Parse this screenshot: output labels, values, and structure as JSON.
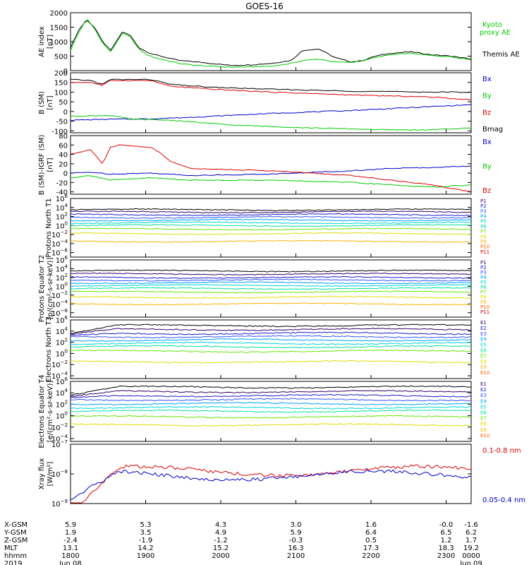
{
  "title": "GOES-16",
  "colors": {
    "black": "#000000",
    "blue": "#0000cc",
    "green": "#00cc00",
    "red": "#dd0000",
    "series": [
      "#000000",
      "#330066",
      "#1a1acc",
      "#3355ff",
      "#00a0ff",
      "#00d4d4",
      "#00e0a0",
      "#66e600",
      "#dede00",
      "#ffb000",
      "#ff6000",
      "#dd0000",
      "#880000"
    ]
  },
  "chart_data": [
    {
      "type": "line",
      "ylabel": "AE index [nT]",
      "yticks": [
        "0",
        "500",
        "1000",
        "1500",
        "2000"
      ],
      "ylim": [
        0,
        2000
      ],
      "legend": [
        {
          "label": "Kyoto proxy AE",
          "color": "green"
        },
        {
          "label": "Themis AE",
          "color": "black"
        }
      ],
      "series": [
        {
          "name": "Themis AE",
          "color": "black",
          "x": [
            0,
            0.02,
            0.04,
            0.06,
            0.08,
            0.1,
            0.13,
            0.15,
            0.17,
            0.19,
            0.21,
            0.24,
            0.27,
            0.3,
            0.35,
            0.4,
            0.45,
            0.5,
            0.55,
            0.58,
            0.62,
            0.66,
            0.7,
            0.73,
            0.76,
            0.8,
            0.85,
            0.9,
            0.95,
            1.0
          ],
          "y": [
            800,
            1400,
            1750,
            1500,
            1000,
            700,
            1350,
            1200,
            800,
            650,
            550,
            450,
            350,
            320,
            250,
            180,
            200,
            250,
            350,
            700,
            750,
            450,
            300,
            350,
            500,
            600,
            650,
            550,
            500,
            400
          ]
        },
        {
          "name": "Kyoto proxy AE",
          "color": "green",
          "x": [
            0,
            0.02,
            0.04,
            0.06,
            0.08,
            0.1,
            0.13,
            0.15,
            0.17,
            0.19,
            0.21,
            0.24,
            0.27,
            0.3,
            0.35,
            0.4,
            0.45,
            0.5,
            0.55,
            0.58,
            0.62,
            0.66,
            0.7,
            0.73,
            0.76,
            0.8,
            0.85,
            0.9,
            0.95,
            1.0
          ],
          "y": [
            700,
            1300,
            1800,
            1450,
            950,
            650,
            1300,
            1150,
            750,
            550,
            450,
            350,
            250,
            200,
            150,
            120,
            130,
            150,
            250,
            350,
            400,
            300,
            280,
            350,
            450,
            550,
            600,
            520,
            480,
            380
          ]
        }
      ]
    },
    {
      "type": "line",
      "ylabel": "B (SM) [nT]",
      "yticks": [
        "-100",
        "-50",
        "0",
        "50",
        "100",
        "150",
        "200"
      ],
      "ylim": [
        -110,
        200
      ],
      "legend": [
        {
          "label": "Bx",
          "color": "blue"
        },
        {
          "label": "By",
          "color": "green"
        },
        {
          "label": "Bz",
          "color": "red"
        },
        {
          "label": "Bmag",
          "color": "black"
        }
      ],
      "series": [
        {
          "name": "Bx",
          "color": "blue",
          "x": [
            0,
            0.1,
            0.2,
            0.3,
            0.5,
            0.7,
            0.9,
            1.0
          ],
          "y": [
            -45,
            -40,
            -38,
            -30,
            -10,
            5,
            25,
            35
          ]
        },
        {
          "name": "By",
          "color": "green",
          "x": [
            0,
            0.1,
            0.15,
            0.25,
            0.4,
            0.6,
            0.8,
            0.9,
            1.0
          ],
          "y": [
            -25,
            -20,
            -40,
            -45,
            -70,
            -85,
            -95,
            -95,
            -85
          ]
        },
        {
          "name": "Bz",
          "color": "red",
          "x": [
            0,
            0.05,
            0.08,
            0.1,
            0.2,
            0.25,
            0.35,
            0.5,
            0.7,
            0.9,
            1.0
          ],
          "y": [
            150,
            150,
            135,
            160,
            160,
            130,
            115,
            100,
            85,
            75,
            60
          ]
        },
        {
          "name": "Bmag",
          "color": "black",
          "x": [
            0,
            0.05,
            0.08,
            0.1,
            0.2,
            0.25,
            0.35,
            0.5,
            0.7,
            0.9,
            1.0
          ],
          "y": [
            165,
            160,
            140,
            165,
            165,
            140,
            125,
            115,
            105,
            100,
            100
          ]
        }
      ]
    },
    {
      "type": "line",
      "ylabel": "B (SM)-IGRF (SM) [nT]",
      "yticks": [
        "-40",
        "-20",
        "0",
        "20",
        "40",
        "60",
        "80"
      ],
      "ylim": [
        -45,
        80
      ],
      "legend": [
        {
          "label": "Bx",
          "color": "blue"
        },
        {
          "label": "By",
          "color": "green"
        },
        {
          "label": "Bz",
          "color": "red"
        }
      ],
      "series": [
        {
          "name": "Bx",
          "color": "blue",
          "x": [
            0,
            0.05,
            0.1,
            0.2,
            0.3,
            0.5,
            0.7,
            0.8,
            0.9,
            1.0
          ],
          "y": [
            0,
            2,
            -2,
            0,
            -5,
            -2,
            5,
            10,
            12,
            15
          ]
        },
        {
          "name": "By",
          "color": "green",
          "x": [
            0,
            0.05,
            0.1,
            0.2,
            0.3,
            0.5,
            0.7,
            0.9,
            1.0
          ],
          "y": [
            -10,
            -5,
            -15,
            -10,
            -15,
            -15,
            -20,
            -30,
            -25
          ]
        },
        {
          "name": "Bz",
          "color": "red",
          "x": [
            0,
            0.05,
            0.08,
            0.1,
            0.12,
            0.2,
            0.22,
            0.25,
            0.3,
            0.5,
            0.7,
            0.9,
            1.0
          ],
          "y": [
            40,
            50,
            20,
            55,
            60,
            55,
            45,
            25,
            10,
            5,
            -5,
            -25,
            -40
          ]
        }
      ]
    },
    {
      "type": "line",
      "yscale": "log",
      "ylabel": "Protons North T1",
      "ytick_exponents": [
        -6,
        -4,
        -2,
        0,
        2,
        4,
        6
      ],
      "ylim_exp": [
        -7,
        6
      ],
      "legend": [
        "P1",
        "P2",
        "P3",
        "P4",
        "P5",
        "P6",
        "P7",
        "P8",
        "P9",
        "P10",
        "P11"
      ],
      "levels_exp": [
        3.5,
        3.0,
        2.4,
        1.8,
        1.2,
        0.6,
        0.0,
        -0.8,
        -1.8,
        -3.5
      ]
    },
    {
      "type": "line",
      "yscale": "log",
      "ylabel": "Protons Equator T2 [p/(cm²-s-sr-keV)]",
      "ytick_exponents": [
        -6,
        -4,
        -2,
        0,
        2,
        4,
        6
      ],
      "ylim_exp": [
        -7,
        6
      ],
      "legend": [
        "P1",
        "P2",
        "P3",
        "P4",
        "P5",
        "P6",
        "P7",
        "P8",
        "P9",
        "P10",
        "P11"
      ],
      "levels_exp": [
        3.5,
        2.8,
        2.0,
        1.4,
        0.8,
        0.2,
        -0.5,
        -1.3,
        -2.5,
        -4.0
      ]
    },
    {
      "type": "line",
      "yscale": "log",
      "ylabel": "Electrons North T3",
      "ytick_exponents": [
        -4,
        -2,
        0,
        2,
        4,
        6
      ],
      "ylim_exp": [
        -4.5,
        6
      ],
      "legend": [
        "E1",
        "E2",
        "E3",
        "E4",
        "E5",
        "E6",
        "E7",
        "E8",
        "E9",
        "E10"
      ],
      "levels_exp": [
        5.0,
        4.3,
        3.6,
        3.0,
        2.4,
        1.8,
        1.2,
        0.4,
        -1.5
      ]
    },
    {
      "type": "line",
      "yscale": "log",
      "ylabel": "Electrons Equator T4 [e/(cm²-s-sr-keV)]",
      "ytick_exponents": [
        -4,
        -2,
        0,
        2,
        4,
        6
      ],
      "ylim_exp": [
        -4.5,
        6
      ],
      "legend": [
        "E1",
        "E2",
        "E3",
        "E4",
        "E5",
        "E6",
        "E7",
        "E8",
        "E9",
        "E10"
      ],
      "levels_exp": [
        5.0,
        4.2,
        3.5,
        2.8,
        2.1,
        1.4,
        0.8,
        -0.2,
        -1.6
      ]
    },
    {
      "type": "line",
      "yscale": "log",
      "ylabel": "Xray flux [W/m²]",
      "ytick_exponents": [
        -9,
        -8,
        -7
      ],
      "ylim_exp": [
        -9,
        -7
      ],
      "legend": [
        {
          "label": "0.1-0.8 nm",
          "color": "red"
        },
        {
          "label": "0.05-0.4 nm",
          "color": "blue"
        }
      ],
      "levels_exp": [
        -7.9,
        -8.05
      ]
    }
  ],
  "xaxis": {
    "tick_fracs": [
      0,
      0.1875,
      0.375,
      0.5625,
      0.75,
      0.9375,
      1.0
    ],
    "row_labels": [
      "X-GSM",
      "Y-GSM",
      "Z-GSM",
      "MLT",
      "hhmm",
      "2019"
    ],
    "columns": [
      [
        "5.9",
        "1.9",
        "-2.4",
        "13.1",
        "1800",
        "Jun 08"
      ],
      [
        "5.3",
        "3.5",
        "-1.9",
        "14.2",
        "1900",
        ""
      ],
      [
        "4.3",
        "4.9",
        "-1.2",
        "15.2",
        "2000",
        ""
      ],
      [
        "3.0",
        "5.9",
        "-0.3",
        "16.3",
        "2100",
        ""
      ],
      [
        "1.6",
        "6.4",
        "0.5",
        "17.3",
        "2200",
        ""
      ],
      [
        "-0.0",
        "6.5",
        "1.2",
        "18.3",
        "2300",
        ""
      ],
      [
        "-1.6",
        "6.2",
        "1.7",
        "19.2",
        "0000",
        "Jun 09"
      ]
    ]
  }
}
